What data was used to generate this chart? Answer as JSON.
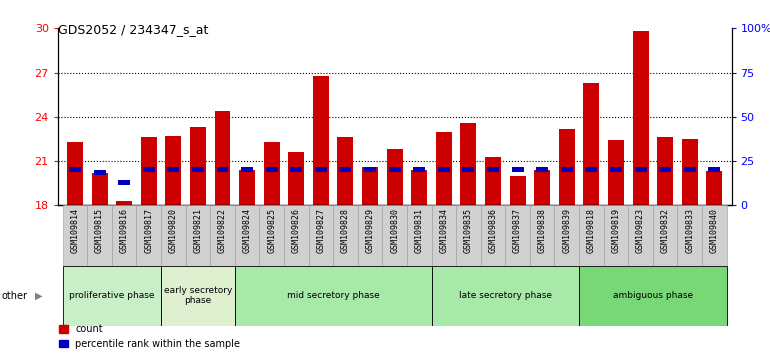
{
  "title": "GDS2052 / 234347_s_at",
  "samples": [
    "GSM109814",
    "GSM109815",
    "GSM109816",
    "GSM109817",
    "GSM109820",
    "GSM109821",
    "GSM109822",
    "GSM109824",
    "GSM109825",
    "GSM109826",
    "GSM109827",
    "GSM109828",
    "GSM109829",
    "GSM109830",
    "GSM109831",
    "GSM109834",
    "GSM109835",
    "GSM109836",
    "GSM109837",
    "GSM109838",
    "GSM109839",
    "GSM109818",
    "GSM109819",
    "GSM109823",
    "GSM109832",
    "GSM109833",
    "GSM109840"
  ],
  "red_values": [
    22.3,
    20.2,
    18.3,
    22.6,
    22.7,
    23.3,
    24.4,
    20.4,
    22.3,
    21.6,
    26.8,
    22.6,
    20.6,
    21.8,
    20.4,
    23.0,
    23.6,
    21.3,
    20.0,
    20.4,
    23.2,
    26.3,
    22.4,
    29.8,
    22.6,
    22.5,
    20.3
  ],
  "blue_values": [
    0.35,
    0.35,
    0.35,
    0.35,
    0.35,
    0.35,
    0.35,
    0.35,
    0.35,
    0.35,
    0.35,
    0.35,
    0.35,
    0.35,
    0.35,
    0.35,
    0.35,
    0.35,
    0.35,
    0.35,
    0.35,
    0.35,
    0.35,
    0.35,
    0.35,
    0.35,
    0.35
  ],
  "blue_positions": [
    20.25,
    20.05,
    19.35,
    20.25,
    20.25,
    20.25,
    20.25,
    20.25,
    20.25,
    20.25,
    20.25,
    20.25,
    20.25,
    20.25,
    20.25,
    20.25,
    20.25,
    20.25,
    20.25,
    20.25,
    20.25,
    20.25,
    20.25,
    20.25,
    20.25,
    20.25,
    20.25
  ],
  "phases": [
    {
      "label": "proliferative phase",
      "start": 0,
      "end": 4,
      "color": "#c8efc8"
    },
    {
      "label": "early secretory\nphase",
      "start": 4,
      "end": 7,
      "color": "#dff0d0"
    },
    {
      "label": "mid secretory phase",
      "start": 7,
      "end": 15,
      "color": "#a8e8a8"
    },
    {
      "label": "late secretory phase",
      "start": 15,
      "end": 21,
      "color": "#a8e8a8"
    },
    {
      "label": "ambiguous phase",
      "start": 21,
      "end": 27,
      "color": "#78d878"
    }
  ],
  "ylim_left": [
    18,
    30
  ],
  "ylim_right": [
    0,
    100
  ],
  "yticks_left": [
    18,
    21,
    24,
    27,
    30
  ],
  "yticks_right": [
    0,
    25,
    50,
    75,
    100
  ],
  "ytick_labels_right": [
    "0",
    "25",
    "50",
    "75",
    "100%"
  ],
  "red_color": "#cc0000",
  "blue_color": "#0000bb",
  "bar_bottom": 18,
  "bar_width": 0.65
}
